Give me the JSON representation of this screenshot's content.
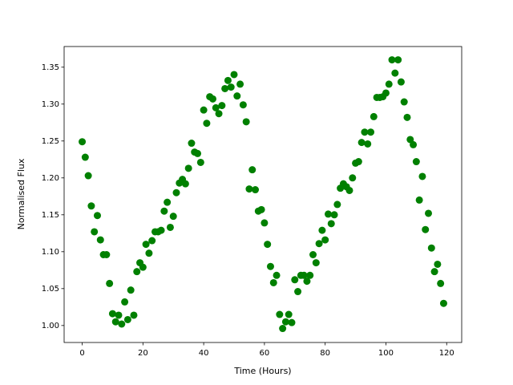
{
  "chart_data": {
    "type": "scatter",
    "x_label": "Time (Hours)",
    "y_label": "Normalised Flux",
    "color": "#008000",
    "x": [
      0,
      1,
      2,
      3,
      4,
      5,
      6,
      7,
      8,
      9,
      10,
      11,
      12,
      13,
      14,
      15,
      16,
      17,
      18,
      19,
      20,
      21,
      22,
      23,
      24,
      25,
      26,
      27,
      28,
      29,
      30,
      31,
      32,
      33,
      34,
      35,
      36,
      37,
      38,
      39,
      40,
      41,
      42,
      43,
      44,
      45,
      46,
      47,
      48,
      49,
      50,
      51,
      52,
      53,
      54,
      55,
      56,
      57,
      58,
      59,
      60,
      61,
      62,
      63,
      64,
      65,
      66,
      67,
      68,
      69,
      70,
      71,
      72,
      73,
      74,
      75,
      76,
      77,
      78,
      79,
      80,
      81,
      82,
      83,
      84,
      85,
      86,
      87,
      88,
      89,
      90,
      91,
      92,
      93,
      94,
      95,
      96,
      97,
      98,
      99,
      100,
      101,
      102,
      103,
      104,
      105,
      106,
      107,
      108,
      109,
      110,
      111,
      112,
      113,
      114,
      115,
      116,
      117,
      118,
      119
    ],
    "values": [
      1.249,
      1.228,
      1.203,
      1.162,
      1.127,
      1.149,
      1.116,
      1.096,
      1.096,
      1.057,
      1.016,
      1.005,
      1.014,
      1.002,
      1.032,
      1.008,
      1.048,
      1.014,
      1.073,
      1.085,
      1.079,
      1.11,
      1.098,
      1.115,
      1.127,
      1.127,
      1.129,
      1.155,
      1.167,
      1.133,
      1.148,
      1.18,
      1.193,
      1.198,
      1.192,
      1.213,
      1.247,
      1.235,
      1.233,
      1.221,
      1.292,
      1.274,
      1.31,
      1.307,
      1.295,
      1.287,
      1.298,
      1.321,
      1.332,
      1.323,
      1.34,
      1.311,
      1.327,
      1.299,
      1.276,
      1.185,
      1.211,
      1.184,
      1.155,
      1.157,
      1.139,
      1.11,
      1.08,
      1.058,
      1.068,
      1.015,
      0.996,
      1.005,
      1.015,
      1.004,
      1.062,
      1.046,
      1.068,
      1.068,
      1.06,
      1.068,
      1.096,
      1.085,
      1.111,
      1.129,
      1.116,
      1.151,
      1.138,
      1.15,
      1.164,
      1.186,
      1.192,
      1.188,
      1.183,
      1.2,
      1.22,
      1.222,
      1.248,
      1.262,
      1.246,
      1.262,
      1.283,
      1.309,
      1.309,
      1.31,
      1.315,
      1.327,
      1.36,
      1.342,
      1.36,
      1.33,
      1.303,
      1.282,
      1.252,
      1.245,
      1.222,
      1.17,
      1.202,
      1.13,
      1.152,
      1.105,
      1.073,
      1.083,
      1.057,
      1.03
    ],
    "xlim": [
      -5.95,
      124.95
    ],
    "xticks": [
      0,
      20,
      40,
      60,
      80,
      100,
      120
    ],
    "ylim": [
      0.977,
      1.378
    ],
    "yticks": [
      {
        "value": 1,
        "label": "1.00"
      },
      1.05,
      {
        "value": 1.1,
        "label": "1.10"
      },
      1.15,
      {
        "value": 1.2,
        "label": "1.20"
      },
      1.25,
      {
        "value": 1.3,
        "label": "1.30"
      },
      1.35
    ]
  }
}
